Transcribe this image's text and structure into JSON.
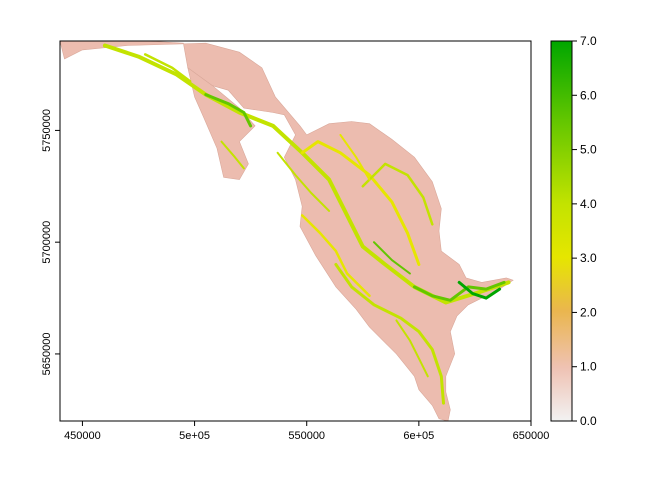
{
  "chart_data": {
    "type": "heatmap",
    "title": "",
    "xlabel": "",
    "ylabel": "",
    "xlim": [
      440000,
      650000
    ],
    "ylim": [
      5620000,
      5790000
    ],
    "x_ticks": [
      {
        "value": 450000,
        "label": "450000"
      },
      {
        "value": 500000,
        "label": "5e+05"
      },
      {
        "value": 550000,
        "label": "550000"
      },
      {
        "value": 600000,
        "label": "6e+05"
      },
      {
        "value": 650000,
        "label": "650000"
      }
    ],
    "y_ticks": [
      {
        "value": 5650000,
        "label": "5650000"
      },
      {
        "value": 5700000,
        "label": "5700000"
      },
      {
        "value": 5750000,
        "label": "5750000"
      }
    ],
    "legend": {
      "position": "right",
      "min": 0.0,
      "max": 7.0,
      "ticks": [
        {
          "value": 0.0,
          "label": "0.0"
        },
        {
          "value": 1.0,
          "label": "1.0"
        },
        {
          "value": 2.0,
          "label": "2.0"
        },
        {
          "value": 3.0,
          "label": "3.0"
        },
        {
          "value": 4.0,
          "label": "4.0"
        },
        {
          "value": 5.0,
          "label": "5.0"
        },
        {
          "value": 6.0,
          "label": "6.0"
        },
        {
          "value": 7.0,
          "label": "7.0"
        }
      ],
      "colors": [
        "#f2f2f2",
        "#efc2b3",
        "#eab64e",
        "#e6e600",
        "#c3e300",
        "#63c600",
        "#00a600"
      ]
    },
    "raster_region": {
      "description_values": "categorical raster, values 0-7",
      "outline": [
        [
          440000,
          5790000
        ],
        [
          448000,
          5790000
        ],
        [
          478000,
          5790000
        ],
        [
          495000,
          5789000
        ],
        [
          497000,
          5778000
        ],
        [
          508000,
          5770000
        ],
        [
          515000,
          5768000
        ],
        [
          522000,
          5760000
        ],
        [
          535000,
          5758000
        ],
        [
          540000,
          5757000
        ],
        [
          545000,
          5748000
        ],
        [
          540000,
          5738000
        ],
        [
          545000,
          5728000
        ],
        [
          548000,
          5716000
        ],
        [
          547000,
          5707000
        ],
        [
          554000,
          5694000
        ],
        [
          563000,
          5680000
        ],
        [
          572000,
          5670000
        ],
        [
          578000,
          5662000
        ],
        [
          585000,
          5655000
        ],
        [
          590000,
          5650000
        ],
        [
          598000,
          5640000
        ],
        [
          600000,
          5634000
        ],
        [
          606000,
          5627000
        ],
        [
          609000,
          5621000
        ],
        [
          613000,
          5620000
        ],
        [
          614000,
          5625000
        ],
        [
          612000,
          5633000
        ],
        [
          612000,
          5640000
        ],
        [
          616000,
          5650000
        ],
        [
          614000,
          5660000
        ],
        [
          617000,
          5667000
        ],
        [
          622000,
          5672000
        ],
        [
          628000,
          5675000
        ],
        [
          636000,
          5679000
        ],
        [
          642000,
          5683000
        ],
        [
          639000,
          5684000
        ],
        [
          628000,
          5682000
        ],
        [
          621000,
          5684000
        ],
        [
          618000,
          5690000
        ],
        [
          610000,
          5696000
        ],
        [
          609000,
          5705000
        ],
        [
          610000,
          5715000
        ],
        [
          606000,
          5727000
        ],
        [
          598000,
          5738000
        ],
        [
          588000,
          5746000
        ],
        [
          578000,
          5753000
        ],
        [
          570000,
          5754000
        ],
        [
          560000,
          5753000
        ],
        [
          550000,
          5748000
        ],
        [
          547000,
          5752000
        ],
        [
          536000,
          5765000
        ],
        [
          530000,
          5778000
        ],
        [
          520000,
          5785000
        ],
        [
          505000,
          5789000
        ],
        [
          470000,
          5788000
        ],
        [
          450000,
          5786000
        ],
        [
          442000,
          5782000
        ]
      ],
      "notch_outline": [
        [
          497000,
          5778000
        ],
        [
          500000,
          5765000
        ],
        [
          504000,
          5756000
        ],
        [
          510000,
          5742000
        ],
        [
          513000,
          5729000
        ],
        [
          520000,
          5728000
        ],
        [
          524000,
          5735000
        ],
        [
          520000,
          5745000
        ],
        [
          527000,
          5752000
        ],
        [
          520000,
          5760000
        ],
        [
          508000,
          5770000
        ]
      ]
    }
  }
}
